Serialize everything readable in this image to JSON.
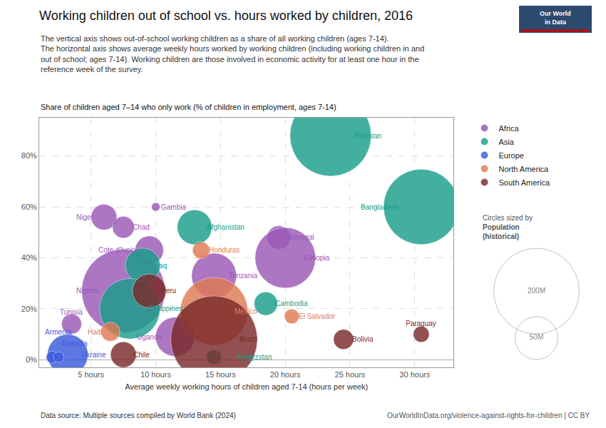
{
  "chart_data": {
    "type": "scatter",
    "title": "Working children out of school vs. hours worked by children, 2016",
    "subtitle": [
      "The vertical axis shows out-of-school working children as a share of all working children (ages 7-14).",
      "The horizontal axis shows average weekly hours worked by working children (including working children in and",
      "out of school; ages 7-14). Working children are those involved in economic activity for at least one hour in the",
      "reference week of the survey."
    ],
    "ylabel": "Share of children aged 7–14 who only work (% of children in employment, ages 7-14)",
    "xlabel": "Average weekly working hours of children aged 7-14 (hours per week)",
    "source": "Data source: Multiple sources compiled by World Bank (2024)",
    "url": "OurWorldInData.org/violence-against-rights-for-children | CC BY",
    "logo": [
      "Our World",
      "in Data"
    ],
    "series": [
      {
        "name": "Africa",
        "color": "#9b59b6",
        "labels": [
          "Niger",
          "Gambia",
          "Chad",
          "Cote d'Ivoire",
          "Senegal",
          "Ethiopia",
          "Tanzania",
          "Nigeria",
          "Tunisia",
          "Uganda"
        ],
        "x": [
          6.0,
          10.0,
          7.5,
          9.5,
          19.5,
          20.0,
          14.5,
          7.5,
          3.5,
          11.5
        ],
        "values": [
          56,
          60,
          52,
          43,
          48,
          40,
          33,
          27,
          14,
          9
        ],
        "sizes": [
          18,
          2,
          13,
          22,
          15,
          100,
          55,
          190,
          11,
          42
        ]
      },
      {
        "name": "Asia",
        "color": "#1a9e8a",
        "labels": [
          "Pakistan",
          "Bangladesh",
          "Afghanistan",
          "Iraq",
          "Cambodia",
          "Philippines",
          "Kyrgyzstan"
        ],
        "x": [
          23.5,
          30.5,
          13.0,
          9.0,
          18.5,
          8.0,
          14.5
        ],
        "values": [
          88,
          60,
          52,
          37,
          22,
          20,
          1
        ],
        "sizes": [
          180,
          155,
          33,
          33,
          15,
          100,
          6
        ]
      },
      {
        "name": "Europe",
        "color": "#3b5bdb",
        "labels": [
          "Ukraine",
          "Georgia",
          "Armenia"
        ],
        "x": [
          3.2,
          2.0,
          2.5
        ],
        "values": [
          2,
          1,
          1
        ],
        "sizes": [
          45,
          4,
          3
        ]
      },
      {
        "name": "North America",
        "color": "#e07b54",
        "labels": [
          "Honduras",
          "Mexico",
          "El Salvador",
          "Haiti"
        ],
        "x": [
          13.5,
          14.5,
          20.5,
          6.5
        ],
        "values": [
          43,
          19,
          17,
          11
        ],
        "sizes": [
          8,
          125,
          6,
          10
        ]
      },
      {
        "name": "South America",
        "color": "#7b2a2a",
        "labels": [
          "Peru",
          "Brazil",
          "Bolivia",
          "Paraguay",
          "Chile"
        ],
        "x": [
          9.5,
          14.5,
          24.5,
          30.5,
          7.5
        ],
        "values": [
          27,
          8,
          8,
          10,
          2
        ],
        "sizes": [
          31,
          205,
          11,
          7,
          18
        ]
      }
    ],
    "size_legend": {
      "title": [
        "Circles sized by",
        "Population",
        "(historical)"
      ],
      "values": [
        200,
        50
      ],
      "value_labels": [
        "200M",
        "50M"
      ]
    },
    "xlim": [
      1,
      33
    ],
    "ylim": [
      -3,
      95
    ],
    "xticks": [
      {
        "value": 5,
        "label": "5 hours"
      },
      {
        "value": 10,
        "label": "10 hours"
      },
      {
        "value": 15,
        "label": "15 hours"
      },
      {
        "value": 20,
        "label": "20 hours"
      },
      {
        "value": 25,
        "label": "25 hours"
      },
      {
        "value": 30,
        "label": "30 hours"
      }
    ],
    "yticks": [
      {
        "value": 0,
        "label": "0%"
      },
      {
        "value": 20,
        "label": "20%"
      },
      {
        "value": 40,
        "label": "40%"
      },
      {
        "value": 60,
        "label": "60%"
      },
      {
        "value": 80,
        "label": "80%"
      }
    ],
    "grid": true,
    "legend": "right"
  }
}
